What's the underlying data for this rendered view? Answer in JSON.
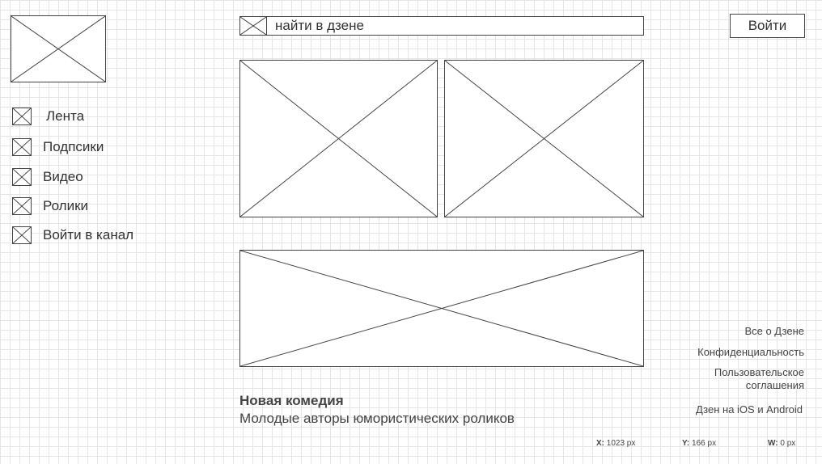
{
  "search": {
    "placeholder": "найти в дзене"
  },
  "header": {
    "login_label": "Войти"
  },
  "sidebar": {
    "items": [
      {
        "label": "Лента"
      },
      {
        "label": "Подпсики"
      },
      {
        "label": "Видео"
      },
      {
        "label": "Ролики"
      },
      {
        "label": "Войти в канал"
      }
    ]
  },
  "post": {
    "title": "Новая комедия",
    "subtitle": "Молодые авторы юмористических роликов"
  },
  "footer": {
    "links": [
      {
        "label": "Все о Дзене"
      },
      {
        "label": "Конфиденциальность"
      },
      {
        "label": "Пользовательское соглашения"
      },
      {
        "label": "Дзен на iOS и Android"
      }
    ]
  },
  "coords": {
    "x_label": "X:",
    "x_value": "1023 px",
    "y_label": "Y:",
    "y_value": "166 px",
    "w_label": "W:",
    "w_value": "0 px"
  }
}
